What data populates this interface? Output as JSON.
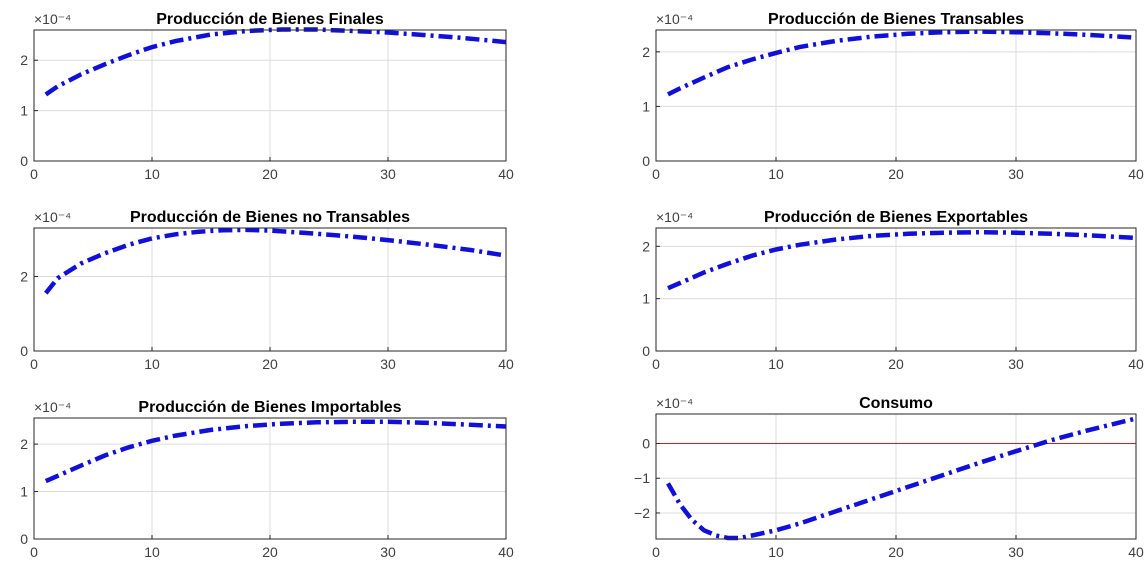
{
  "colors": {
    "series": "#1010d8",
    "zero_line": "#d62020",
    "axes": "#262626",
    "grid": "#dcdcdc"
  },
  "chart_data": [
    {
      "type": "line",
      "title": "Producción de Bienes Finales",
      "y_exponent": "×10⁻⁴",
      "xlim": [
        0,
        40
      ],
      "ylim": [
        0,
        2.6
      ],
      "xticks": [
        0,
        10,
        20,
        30,
        40
      ],
      "yticks": [
        0,
        1,
        2
      ],
      "grid": true,
      "reference_line": {
        "y": 0
      },
      "x": [
        1,
        2,
        4,
        6,
        8,
        10,
        12,
        15,
        18,
        21,
        24,
        27,
        30,
        33,
        36,
        40
      ],
      "series": [
        {
          "values": [
            1.32,
            1.48,
            1.72,
            1.92,
            2.1,
            2.26,
            2.38,
            2.51,
            2.58,
            2.61,
            2.61,
            2.58,
            2.55,
            2.5,
            2.45,
            2.36
          ]
        }
      ]
    },
    {
      "type": "line",
      "title": "Producción de Bienes Transables",
      "y_exponent": "×10⁻⁴",
      "xlim": [
        0,
        40
      ],
      "ylim": [
        0,
        2.4
      ],
      "xticks": [
        0,
        10,
        20,
        30,
        40
      ],
      "yticks": [
        0,
        1,
        2
      ],
      "grid": true,
      "reference_line": {
        "y": 0
      },
      "x": [
        1,
        2,
        4,
        6,
        8,
        10,
        12,
        15,
        18,
        21,
        24,
        27,
        30,
        33,
        36,
        40
      ],
      "series": [
        {
          "values": [
            1.22,
            1.33,
            1.53,
            1.72,
            1.86,
            1.98,
            2.09,
            2.2,
            2.28,
            2.33,
            2.36,
            2.37,
            2.36,
            2.34,
            2.31,
            2.26
          ]
        }
      ]
    },
    {
      "type": "line",
      "title": "Producción de Bienes no Transables",
      "y_exponent": "×10⁻⁴",
      "xlim": [
        0,
        40
      ],
      "ylim": [
        0,
        3.3
      ],
      "xticks": [
        0,
        10,
        20,
        30,
        40
      ],
      "yticks": [
        0,
        2
      ],
      "grid": true,
      "reference_line": {
        "y": 0
      },
      "x": [
        1,
        2,
        4,
        6,
        8,
        10,
        12,
        14,
        16,
        18,
        20,
        22,
        25,
        28,
        31,
        34,
        37,
        40
      ],
      "series": [
        {
          "values": [
            1.55,
            1.95,
            2.35,
            2.62,
            2.85,
            3.02,
            3.13,
            3.2,
            3.24,
            3.25,
            3.23,
            3.19,
            3.12,
            3.04,
            2.94,
            2.83,
            2.71,
            2.56
          ]
        }
      ]
    },
    {
      "type": "line",
      "title": "Producción de Bienes Exportables",
      "y_exponent": "×10⁻⁴",
      "xlim": [
        0,
        40
      ],
      "ylim": [
        0,
        2.35
      ],
      "xticks": [
        0,
        10,
        20,
        30,
        40
      ],
      "yticks": [
        0,
        1,
        2
      ],
      "grid": true,
      "reference_line": {
        "y": 0
      },
      "x": [
        1,
        2,
        4,
        6,
        8,
        10,
        12,
        15,
        18,
        21,
        24,
        27,
        30,
        33,
        36,
        40
      ],
      "series": [
        {
          "values": [
            1.2,
            1.3,
            1.5,
            1.67,
            1.82,
            1.94,
            2.03,
            2.13,
            2.2,
            2.24,
            2.26,
            2.27,
            2.26,
            2.24,
            2.21,
            2.16
          ]
        }
      ]
    },
    {
      "type": "line",
      "title": "Producción de Bienes Importables",
      "y_exponent": "×10⁻⁴",
      "xlim": [
        0,
        40
      ],
      "ylim": [
        0,
        2.55
      ],
      "xticks": [
        0,
        10,
        20,
        30,
        40
      ],
      "yticks": [
        0,
        1,
        2
      ],
      "grid": true,
      "reference_line": {
        "y": 0
      },
      "x": [
        1,
        2,
        4,
        6,
        8,
        10,
        12,
        15,
        18,
        21,
        24,
        27,
        30,
        33,
        36,
        40
      ],
      "series": [
        {
          "values": [
            1.22,
            1.33,
            1.55,
            1.76,
            1.93,
            2.07,
            2.18,
            2.3,
            2.38,
            2.43,
            2.46,
            2.47,
            2.47,
            2.45,
            2.42,
            2.37
          ]
        }
      ]
    },
    {
      "type": "line",
      "title": "Consumo",
      "y_exponent": "×10⁻⁴",
      "xlim": [
        0,
        40
      ],
      "ylim": [
        -2.75,
        0.85
      ],
      "xticks": [
        0,
        10,
        20,
        30,
        40
      ],
      "yticks": [
        -2,
        -1,
        0
      ],
      "grid": true,
      "reference_line": {
        "y": 0
      },
      "x": [
        1,
        2,
        3,
        4,
        5,
        6,
        7,
        8,
        10,
        12,
        15,
        18,
        21,
        24,
        27,
        30,
        33,
        36,
        40
      ],
      "series": [
        {
          "values": [
            -1.15,
            -1.75,
            -2.2,
            -2.5,
            -2.65,
            -2.72,
            -2.72,
            -2.65,
            -2.5,
            -2.3,
            -1.95,
            -1.6,
            -1.25,
            -0.9,
            -0.55,
            -0.22,
            0.1,
            0.38,
            0.72
          ]
        }
      ]
    }
  ]
}
